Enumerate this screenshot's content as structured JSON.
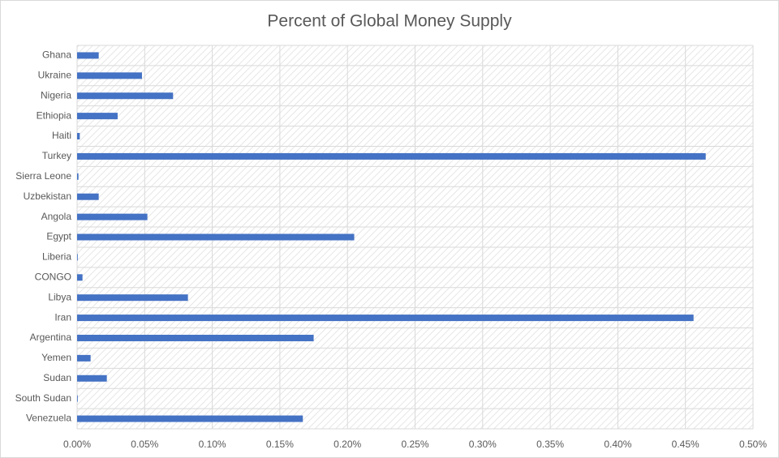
{
  "chart_data": {
    "type": "barh",
    "title": "Percent of Global Money Supply",
    "categories": [
      "Ghana",
      "Ukraine",
      "Nigeria",
      "Ethiopia",
      "Haiti",
      "Turkey",
      "Sierra Leone",
      "Uzbekistan",
      "Angola",
      "Egypt",
      "Liberia",
      "CONGO",
      "Libya",
      "Iran",
      "Argentina",
      "Yemen",
      "Sudan",
      "South Sudan",
      "Venezuela"
    ],
    "values": [
      0.016,
      0.048,
      0.071,
      0.03,
      0.002,
      0.465,
      0.001,
      0.016,
      0.052,
      0.205,
      0.0005,
      0.004,
      0.082,
      0.456,
      0.175,
      0.01,
      0.022,
      0.0005,
      0.167
    ],
    "color": "#4472c4",
    "xlim": [
      0,
      0.5
    ],
    "xticks": [
      {
        "value": 0,
        "label": "0.00%"
      },
      {
        "value": 0.05,
        "label": "0.05%"
      },
      {
        "value": 0.1,
        "label": "0.10%"
      },
      {
        "value": 0.15,
        "label": "0.15%"
      },
      {
        "value": 0.2,
        "label": "0.20%"
      },
      {
        "value": 0.25,
        "label": "0.25%"
      },
      {
        "value": 0.3,
        "label": "0.30%"
      },
      {
        "value": 0.35,
        "label": "0.35%"
      },
      {
        "value": 0.4,
        "label": "0.40%"
      },
      {
        "value": 0.45,
        "label": "0.45%"
      },
      {
        "value": 0.5,
        "label": "0.50%"
      }
    ],
    "grid": true
  }
}
